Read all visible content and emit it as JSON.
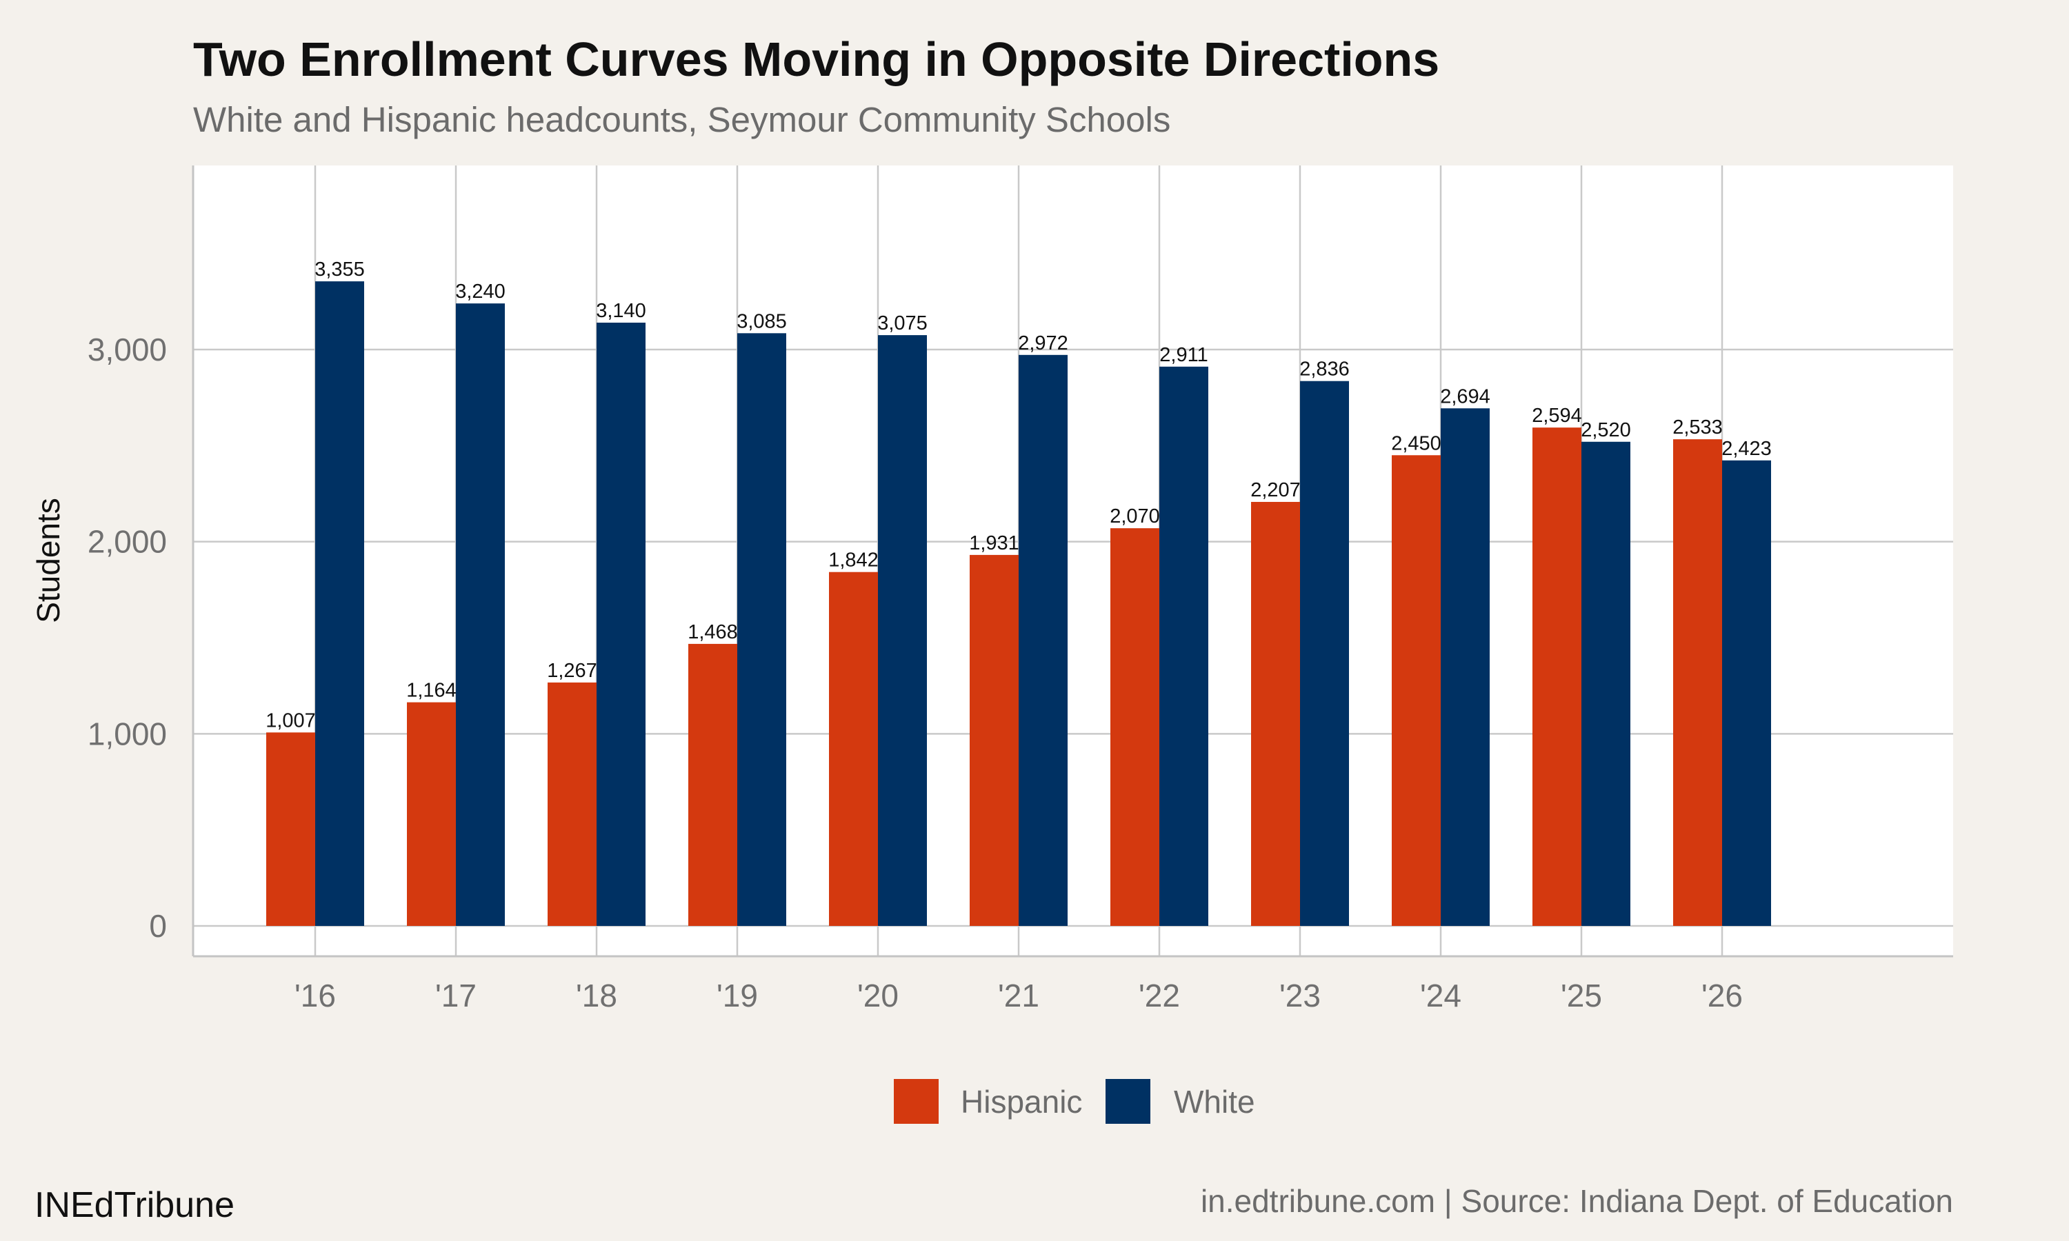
{
  "chart_data": {
    "type": "bar",
    "title": "Two Enrollment Curves Moving in Opposite Directions",
    "subtitle": "White and Hispanic headcounts, Seymour Community Schools",
    "ylabel": "Students",
    "xlabel": "",
    "ylim": [
      0,
      3900
    ],
    "yticks": [
      0,
      1000,
      2000,
      3000
    ],
    "ytick_labels": [
      "0",
      "1,000",
      "2,000",
      "3,000"
    ],
    "categories": [
      "'16",
      "'17",
      "'18",
      "'19",
      "'20",
      "'21",
      "'22",
      "'23",
      "'24",
      "'25",
      "'26"
    ],
    "series": [
      {
        "name": "Hispanic",
        "color": "#d4390f",
        "values": [
          1007,
          1164,
          1267,
          1468,
          1842,
          1931,
          2070,
          2207,
          2450,
          2594,
          2533
        ],
        "labels": [
          "1,007",
          "1,164",
          "1,267",
          "1,468",
          "1,842",
          "1,931",
          "2,070",
          "2,207",
          "2,450",
          "2,594",
          "2,533"
        ]
      },
      {
        "name": "White",
        "color": "#003163",
        "values": [
          3355,
          3240,
          3140,
          3085,
          3075,
          2972,
          2911,
          2836,
          2694,
          2520,
          2423
        ],
        "labels": [
          "3,355",
          "3,240",
          "3,140",
          "3,085",
          "3,075",
          "2,972",
          "2,911",
          "2,836",
          "2,694",
          "2,520",
          "2,423"
        ]
      }
    ],
    "grid": true,
    "legend_position": "bottom"
  },
  "footer": {
    "brand": "INEdTribune",
    "source": "in.edtribune.com | Source: Indiana Dept. of Education"
  }
}
